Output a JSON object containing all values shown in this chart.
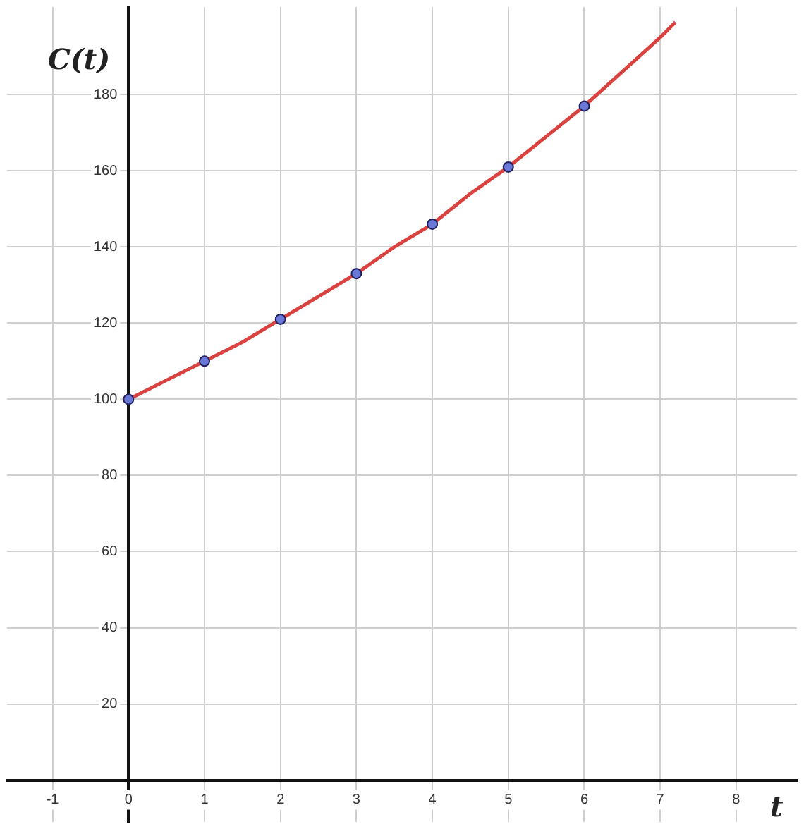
{
  "chart_data": {
    "type": "line",
    "xlabel": "t",
    "ylabel": "C(t)",
    "xlim": [
      -1.6,
      8.8
    ],
    "ylim": [
      -11,
      203
    ],
    "xticks": [
      -1,
      0,
      1,
      2,
      3,
      4,
      5,
      6,
      7,
      8
    ],
    "yticks": [
      20,
      40,
      60,
      80,
      100,
      120,
      140,
      160,
      180
    ],
    "grid": true,
    "legend": false,
    "series": [
      {
        "color": "#d9423f",
        "marker": "none",
        "x": [
          0,
          0.5,
          1,
          1.5,
          2,
          2.5,
          3,
          3.5,
          4,
          4.5,
          5,
          5.5,
          6,
          6.5,
          7,
          7.2
        ],
        "values": [
          100,
          105,
          110,
          115,
          121,
          127,
          133,
          140,
          146,
          154,
          161,
          169,
          177,
          186,
          195,
          199
        ]
      },
      {
        "type": "scatter",
        "color": "#6a78d8",
        "marker": "circle",
        "x": [
          0,
          1,
          2,
          3,
          4,
          5,
          6
        ],
        "values": [
          100,
          110,
          121,
          133,
          146,
          161,
          177
        ]
      }
    ]
  }
}
